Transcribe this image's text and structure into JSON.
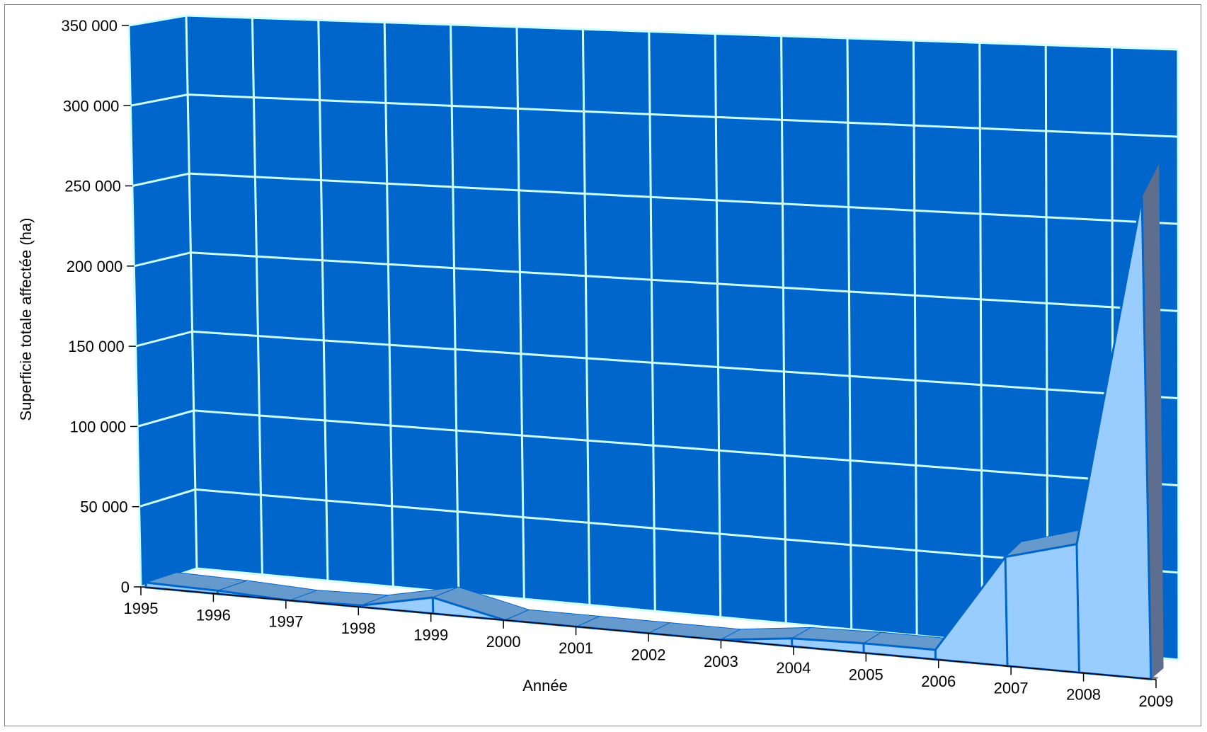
{
  "chart_data": {
    "type": "area",
    "style": "3d",
    "title": "",
    "xlabel": "Année",
    "ylabel": "Superficie totale affectée (ha)",
    "categories": [
      "1995",
      "1996",
      "1997",
      "1998",
      "1999",
      "2000",
      "2001",
      "2002",
      "2003",
      "2004",
      "2005",
      "2006",
      "2007",
      "2008",
      "2009"
    ],
    "series": [
      {
        "values": [
          3000,
          2000,
          0,
          1000,
          10000,
          -8000,
          -6000,
          -10000,
          -10000,
          5000,
          6000,
          6000,
          68000,
          80000,
          300000
        ]
      }
    ],
    "ylim": [
      0,
      350000
    ],
    "yticks": [
      0,
      50000,
      100000,
      150000,
      200000,
      250000,
      300000,
      350000
    ],
    "ytick_labels": [
      "0",
      "50 000",
      "100 000",
      "150 000",
      "200 000",
      "250 000",
      "300 000",
      "350 000"
    ],
    "grid": true,
    "legend": "none",
    "colors": {
      "wall": "#0066CC",
      "grid": "#CCFFFF",
      "area_front": "#99CCFF",
      "area_top": "#6699CC",
      "area_edge": "#0066CC",
      "floor": "#808080",
      "side_wall": "#5E6E8E"
    }
  }
}
